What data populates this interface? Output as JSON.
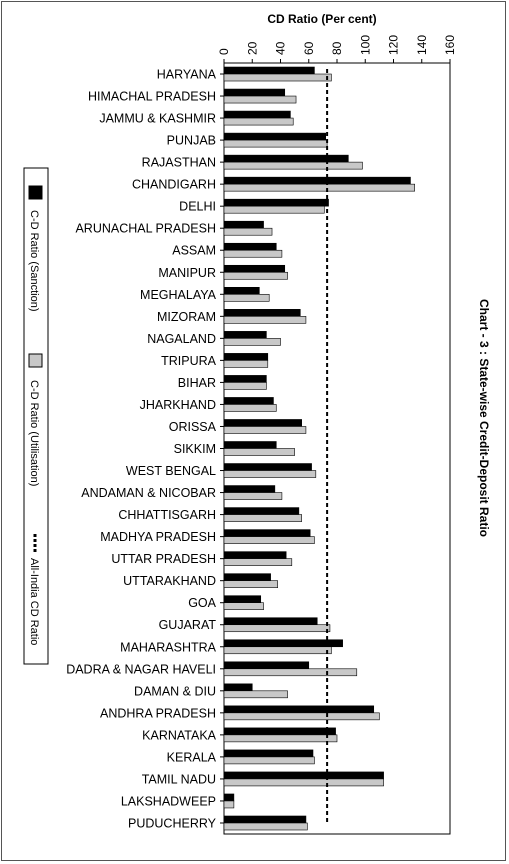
{
  "chart_data": {
    "type": "bar",
    "orientation": "horizontal",
    "title": "Chart - 3 : State-wise Credit-Deposit Ratio",
    "xlabel": "CD Ratio (Per cent)",
    "xlim": [
      0,
      160
    ],
    "ticks": [
      "0",
      "20",
      "40",
      "60",
      "80",
      "100",
      "120",
      "140",
      "160"
    ],
    "tick_values": [
      0,
      20,
      40,
      60,
      80,
      100,
      120,
      140,
      160
    ],
    "categories": [
      "HARYANA",
      "HIMACHAL PRADESH",
      "JAMMU & KASHMIR",
      "PUNJAB",
      "RAJASTHAN",
      "CHANDIGARH",
      "DELHI",
      "ARUNACHAL PRADESH",
      "ASSAM",
      "MANIPUR",
      "MEGHALAYA",
      "MIZORAM",
      "NAGALAND",
      "TRIPURA",
      "BIHAR",
      "JHARKHAND",
      "ORISSA",
      "SIKKIM",
      "WEST BENGAL",
      "ANDAMAN & NICOBAR",
      "CHHATTISGARH",
      "MADHYA PRADESH",
      "UTTAR PRADESH",
      "UTTARAKHAND",
      "GOA",
      "GUJARAT",
      "MAHARASHTRA",
      "DADRA & NAGAR HAVELI",
      "DAMAN & DIU",
      "ANDHRA PRADESH",
      "KARNATAKA",
      "KERALA",
      "TAMIL NADU",
      "LAKSHADWEEP",
      "PUDUCHERRY"
    ],
    "series": [
      {
        "name": "C-D Ratio (Sanction)",
        "color": "#000000",
        "values": [
          64,
          43,
          47,
          72,
          88,
          132,
          74,
          28,
          37,
          43,
          25,
          54,
          30,
          31,
          30,
          35,
          55,
          37,
          62,
          36,
          53,
          61,
          44,
          33,
          26,
          66,
          84,
          60,
          20,
          106,
          79,
          63,
          113,
          7,
          58
        ]
      },
      {
        "name": "C-D Ratio (Utilisation)",
        "color": "#c8c8c8",
        "values": [
          76,
          51,
          49,
          73,
          98,
          135,
          71,
          34,
          41,
          45,
          32,
          58,
          40,
          31,
          30,
          37,
          58,
          50,
          65,
          41,
          55,
          64,
          48,
          38,
          28,
          75,
          76,
          94,
          45,
          110,
          80,
          64,
          113,
          7,
          59
        ]
      }
    ],
    "reference_line": {
      "name": "All-India CD Ratio",
      "value": 73
    },
    "legend_position": "left",
    "grid": false
  }
}
